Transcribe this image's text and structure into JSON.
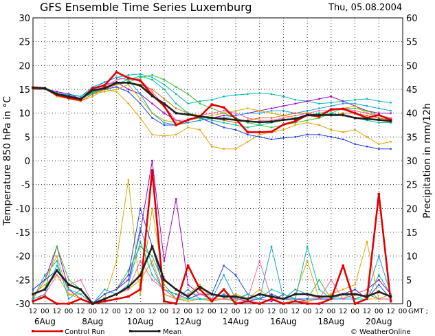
{
  "chart_data": {
    "type": "line",
    "title": "GFS Ensemble Time Series Luxemburg",
    "date": "Thu, 05.08.2004",
    "ylabel_left": "Temperature 850 hPa in °C",
    "ylabel_right": "Precipitation in mm/12h",
    "ylim_left": [
      -30,
      30
    ],
    "ylim_right": [
      0,
      60
    ],
    "yticks_left": [
      "30",
      "25",
      "20",
      "15",
      "10",
      "5",
      "0",
      "-5",
      "-10",
      "-15",
      "-20",
      "-25",
      "-30"
    ],
    "yticks_right": [
      "60",
      "55",
      "50",
      "45",
      "40",
      "35",
      "30",
      "25",
      "20",
      "15",
      "10",
      "5",
      "0"
    ],
    "x_tick_labels": [
      "12",
      "00",
      "12",
      "00",
      "12",
      "00",
      "12",
      "00",
      "12",
      "00",
      "12",
      "00",
      "12",
      "00",
      "12",
      "00",
      "12",
      "00",
      "12",
      "00",
      "12",
      "00",
      "12",
      "00",
      "12",
      "00",
      "12",
      "00",
      "12",
      "00",
      "12",
      "00"
    ],
    "x_tick_suffix": "GMT ;",
    "x_date_labels": [
      {
        "label": "6Aug",
        "index": 1
      },
      {
        "label": "8Aug",
        "index": 5
      },
      {
        "label": "10Aug",
        "index": 9
      },
      {
        "label": "12Aug",
        "index": 13
      },
      {
        "label": "14Aug",
        "index": 17
      },
      {
        "label": "16Aug",
        "index": 21
      },
      {
        "label": "18Aug",
        "index": 25
      },
      {
        "label": "20Aug",
        "index": 29
      }
    ],
    "grid": true,
    "legend": {
      "placement": "bottom",
      "items": [
        {
          "name": "Control Run",
          "color": "#e00000"
        },
        {
          "name": "Mean",
          "color": "#202020"
        }
      ],
      "credit": "© WeatherOnline"
    },
    "temperature_series": [
      {
        "name": "Control Run",
        "color": "#e00000",
        "width": 2.6,
        "values": [
          15.4,
          15.2,
          13.8,
          13.2,
          12.8,
          15.2,
          15.8,
          18.6,
          17.4,
          16.8,
          13.8,
          11.5,
          7.5,
          8.6,
          9.3,
          11.8,
          11.2,
          8.8,
          6.0,
          6.0,
          6.1,
          7.6,
          8.3,
          9.6,
          9.3,
          10.8,
          10.9,
          10.0,
          9.0,
          9.6,
          8.6
        ]
      },
      {
        "name": "Mean",
        "color": "#202020",
        "width": 2.6,
        "values": [
          15.3,
          15.2,
          14.0,
          13.5,
          13.0,
          14.8,
          15.2,
          16.4,
          16.4,
          15.8,
          13.6,
          12.0,
          10.0,
          9.7,
          9.3,
          9.0,
          8.8,
          8.6,
          8.3,
          8.1,
          8.2,
          8.6,
          8.8,
          9.6,
          9.6,
          9.6,
          9.6,
          9.0,
          8.8,
          8.6,
          8.3
        ]
      },
      {
        "name": "m1",
        "color": "#00b8b0",
        "width": 1,
        "values": [
          15.5,
          15.2,
          14.5,
          14.0,
          13.5,
          15.0,
          16.5,
          17.5,
          18.0,
          18.2,
          17.5,
          16.0,
          14.0,
          12.0,
          12.5,
          12.8,
          13.5,
          13.8,
          14.0,
          14.2,
          14.0,
          13.5,
          12.8,
          12.5,
          12.0,
          12.2,
          12.5,
          12.8,
          13.0,
          12.5,
          12.2
        ]
      },
      {
        "name": "m2",
        "color": "#e8a000",
        "width": 1,
        "values": [
          15.0,
          15.2,
          13.5,
          13.0,
          12.5,
          13.5,
          15.0,
          14.5,
          12.0,
          9.0,
          5.5,
          5.2,
          5.5,
          7.0,
          6.5,
          3.0,
          2.5,
          2.5,
          4.0,
          5.5,
          6.0,
          6.5,
          7.5,
          8.0,
          7.5,
          6.5,
          6.0,
          6.5,
          5.0,
          3.5,
          4.0
        ]
      },
      {
        "name": "m3",
        "color": "#2040e0",
        "width": 1,
        "values": [
          15.2,
          15.2,
          14.0,
          13.0,
          12.8,
          14.5,
          15.0,
          15.5,
          14.5,
          12.0,
          9.0,
          7.5,
          7.5,
          8.5,
          9.0,
          8.0,
          7.0,
          6.5,
          5.5,
          5.0,
          4.5,
          4.8,
          5.0,
          5.5,
          5.5,
          5.0,
          4.5,
          3.5,
          3.0,
          2.5,
          2.5
        ]
      },
      {
        "name": "m4",
        "color": "#a000c0",
        "width": 1,
        "values": [
          15.0,
          15.0,
          14.5,
          14.0,
          13.0,
          15.0,
          16.0,
          16.5,
          15.0,
          14.0,
          12.0,
          10.0,
          8.5,
          8.0,
          8.5,
          9.0,
          9.5,
          9.5,
          10.0,
          10.5,
          11.0,
          11.5,
          12.0,
          12.5,
          13.0,
          13.5,
          12.5,
          11.5,
          10.5,
          10.0,
          10.0
        ]
      },
      {
        "name": "m5",
        "color": "#30c030",
        "width": 1,
        "values": [
          15.5,
          15.4,
          14.0,
          13.5,
          13.0,
          14.5,
          15.5,
          16.0,
          16.5,
          17.5,
          18.0,
          17.0,
          15.5,
          14.0,
          12.0,
          11.0,
          10.0,
          9.0,
          8.0,
          7.5,
          7.0,
          7.5,
          8.0,
          8.5,
          9.0,
          10.0,
          11.0,
          11.0,
          10.5,
          9.5,
          9.0
        ]
      },
      {
        "name": "m6",
        "color": "#10a0e0",
        "width": 1,
        "values": [
          15.3,
          15.2,
          14.2,
          13.8,
          13.5,
          15.5,
          16.5,
          17.5,
          17.0,
          14.0,
          10.0,
          8.0,
          7.5,
          8.0,
          8.5,
          9.0,
          9.0,
          9.5,
          10.0,
          10.0,
          10.5,
          10.5,
          10.0,
          10.5,
          11.0,
          11.5,
          12.0,
          12.0,
          11.5,
          11.0,
          10.5
        ]
      },
      {
        "name": "m7",
        "color": "#c8b000",
        "width": 1,
        "values": [
          15.5,
          15.0,
          14.0,
          13.2,
          12.5,
          14.0,
          14.5,
          15.0,
          16.0,
          13.0,
          10.0,
          8.5,
          8.0,
          8.5,
          9.0,
          9.5,
          10.0,
          10.5,
          11.0,
          10.5,
          10.0,
          9.5,
          9.0,
          9.5,
          10.0,
          10.5,
          11.0,
          11.5,
          10.0,
          9.0,
          8.5
        ]
      },
      {
        "name": "m8",
        "color": "#ff60a0",
        "width": 1,
        "values": [
          15.2,
          15.3,
          13.8,
          13.5,
          13.0,
          14.8,
          15.5,
          17.0,
          17.5,
          17.0,
          14.5,
          11.5,
          8.5,
          8.5,
          9.5,
          10.0,
          10.5,
          10.0,
          9.0,
          8.5,
          8.5,
          9.0,
          9.5,
          10.0,
          10.5,
          10.5,
          11.0,
          10.5,
          10.0,
          9.5,
          9.0
        ]
      },
      {
        "name": "m9",
        "color": "#d07010",
        "width": 1,
        "values": [
          15.0,
          15.2,
          14.0,
          13.0,
          12.5,
          14.0,
          15.0,
          16.0,
          16.5,
          16.0,
          15.0,
          13.0,
          11.0,
          10.0,
          9.5,
          9.0,
          8.5,
          8.0,
          8.5,
          9.0,
          9.0,
          9.5,
          10.0,
          10.0,
          9.5,
          9.5,
          10.0,
          10.0,
          9.5,
          9.0,
          8.5
        ]
      },
      {
        "name": "m10",
        "color": "#00c090",
        "width": 1,
        "values": [
          15.4,
          15.0,
          14.2,
          13.6,
          13.0,
          14.2,
          15.2,
          16.2,
          17.0,
          17.8,
          17.0,
          15.0,
          12.0,
          10.0,
          9.0,
          8.5,
          8.0,
          7.5,
          7.0,
          7.5,
          8.0,
          8.5,
          9.0,
          9.5,
          10.0,
          10.0,
          9.5,
          9.0,
          8.5,
          8.0,
          8.0
        ]
      }
    ],
    "precipitation_series": [
      {
        "name": "Control Run",
        "color": "#e00000",
        "width": 2.6,
        "values": [
          0.5,
          1.5,
          0,
          0,
          1,
          0,
          0.5,
          1,
          1.5,
          3,
          28,
          0.5,
          0,
          8,
          3,
          0.5,
          3,
          0,
          0.5,
          0,
          1,
          0,
          0.5,
          0,
          0,
          1,
          8,
          0,
          1,
          23,
          0.5
        ]
      },
      {
        "name": "Mean",
        "color": "#202020",
        "width": 2.6,
        "values": [
          2,
          3,
          7,
          4,
          3,
          0,
          1,
          2,
          3.5,
          6,
          12,
          5,
          3,
          1.5,
          3.5,
          2,
          1.5,
          1.5,
          1,
          2,
          1.5,
          1,
          2,
          2,
          1.5,
          1.5,
          2,
          2,
          1.5,
          2.5,
          1.5
        ]
      },
      {
        "name": "p1",
        "color": "#a000c0",
        "width": 1,
        "values": [
          1,
          5,
          12,
          3,
          1,
          0,
          2,
          3,
          5,
          15,
          30,
          9,
          22,
          4,
          2,
          1,
          2,
          1,
          0.5,
          1,
          0.5,
          2,
          1,
          0.5,
          1,
          1,
          1,
          2,
          3,
          5,
          2
        ]
      },
      {
        "name": "p2",
        "color": "#c8b000",
        "width": 1,
        "values": [
          2,
          4,
          6,
          2,
          1,
          0,
          1,
          9,
          26,
          2,
          20,
          4,
          1,
          0.5,
          1,
          0.5,
          1,
          2,
          1,
          1,
          2,
          1,
          0.5,
          0.5,
          1,
          2,
          1,
          3,
          1,
          1,
          1
        ]
      },
      {
        "name": "p3",
        "color": "#10a0e0",
        "width": 1,
        "values": [
          1,
          6,
          9,
          1,
          3,
          0,
          3,
          2,
          4,
          16,
          8,
          2,
          1,
          3,
          1,
          1,
          6,
          1,
          1,
          1,
          12,
          1,
          3,
          2,
          1,
          1,
          1,
          1,
          2,
          10,
          2
        ]
      },
      {
        "name": "p4",
        "color": "#30c030",
        "width": 1,
        "values": [
          2,
          3,
          12,
          5,
          3,
          0,
          2,
          3,
          7,
          12,
          10,
          4,
          1,
          1,
          2,
          1,
          1,
          0.5,
          2,
          1,
          2,
          1,
          1,
          1,
          5,
          1,
          2,
          1,
          2,
          1,
          1
        ]
      },
      {
        "name": "p5",
        "color": "#e8a000",
        "width": 1,
        "values": [
          1,
          5,
          10,
          2,
          2,
          0,
          1,
          2,
          3,
          5,
          9,
          2,
          1,
          2,
          4,
          1,
          1,
          2,
          1,
          3,
          1,
          1,
          2,
          9,
          1,
          2,
          3,
          4,
          13,
          1,
          2
        ]
      },
      {
        "name": "p6",
        "color": "#2040e0",
        "width": 1,
        "values": [
          3,
          5,
          7,
          4,
          3,
          0,
          2,
          3,
          6,
          20,
          12,
          3,
          2,
          1,
          2,
          2,
          8,
          6,
          2,
          1,
          2,
          1,
          1,
          1,
          1,
          1,
          2,
          3,
          1,
          4,
          1
        ]
      },
      {
        "name": "p7",
        "color": "#00b8b0",
        "width": 1,
        "values": [
          1,
          2,
          8,
          3,
          2,
          0,
          1,
          2,
          4,
          13,
          6,
          3,
          2,
          1,
          1,
          1,
          2,
          1,
          2,
          1,
          3,
          2,
          1,
          12,
          3,
          1,
          2,
          1,
          1,
          6,
          2
        ]
      },
      {
        "name": "p8",
        "color": "#ff60a0",
        "width": 1,
        "values": [
          0.5,
          2,
          6,
          4,
          5,
          0,
          1,
          2,
          3,
          9,
          5,
          3,
          1,
          2,
          2,
          1,
          1,
          1,
          1,
          9,
          1,
          1,
          2,
          2,
          1,
          5,
          1,
          2,
          3,
          1,
          1
        ]
      }
    ]
  }
}
